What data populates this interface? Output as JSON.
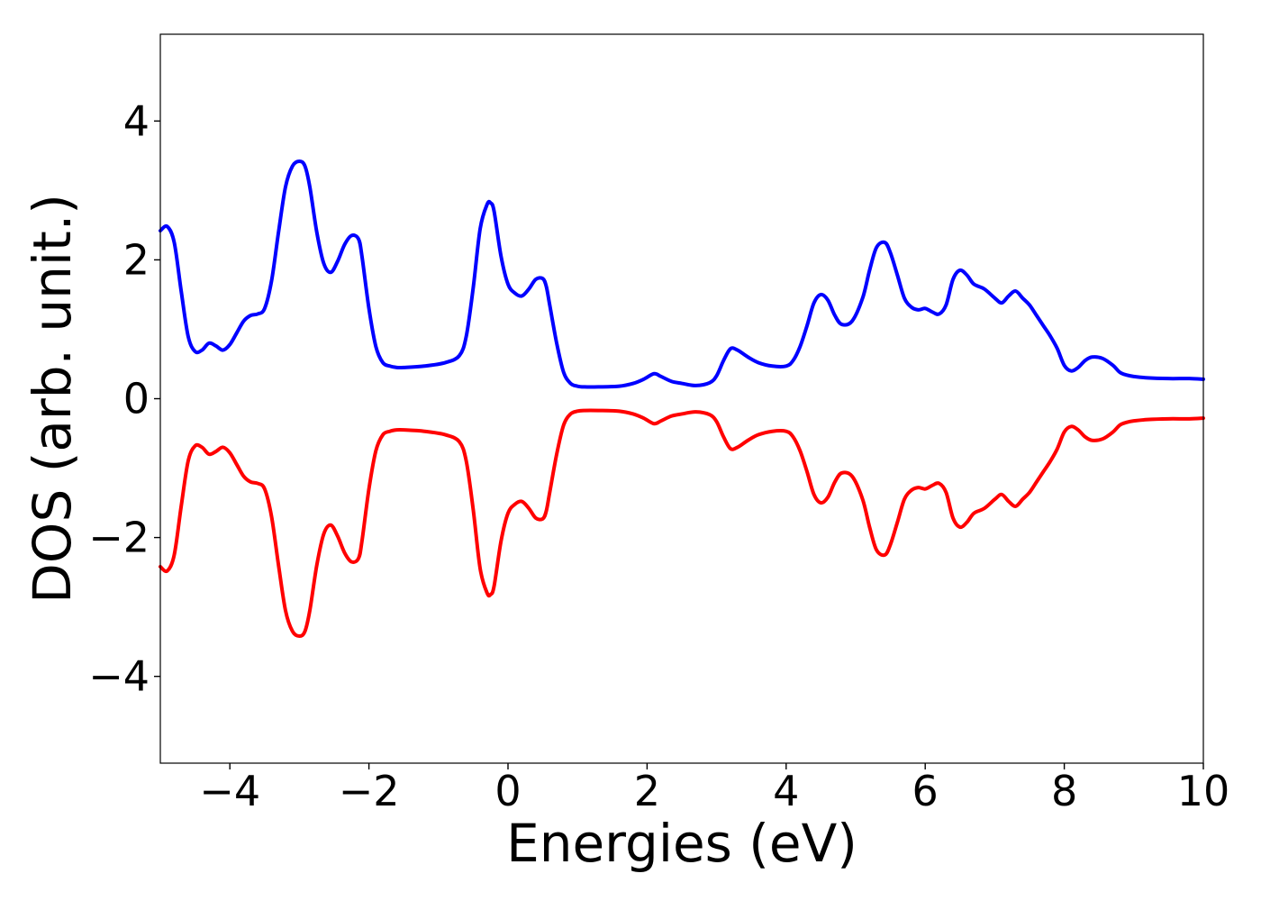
{
  "chart_data": {
    "type": "line",
    "title": "",
    "xlabel": "Energies (eV)",
    "ylabel": "DOS (arb. unit.)",
    "xlim": [
      -5,
      10
    ],
    "ylim": [
      -5.25,
      5.25
    ],
    "grid": false,
    "legend": "none",
    "xticks": [
      -4,
      -2,
      0,
      2,
      4,
      6,
      8,
      10
    ],
    "xtick_labels": [
      "−4",
      "−2",
      "0",
      "2",
      "4",
      "6",
      "8",
      "10"
    ],
    "yticks": [
      -4,
      -2,
      0,
      2,
      4
    ],
    "ytick_labels": [
      "−4",
      "−2",
      "0",
      "2",
      "4"
    ],
    "series": [
      {
        "color": "#0000ff",
        "x": [
          -5.0,
          -4.9,
          -4.8,
          -4.7,
          -4.6,
          -4.5,
          -4.4,
          -4.3,
          -4.2,
          -4.1,
          -4.0,
          -3.9,
          -3.8,
          -3.7,
          -3.6,
          -3.5,
          -3.4,
          -3.3,
          -3.2,
          -3.1,
          -3.0,
          -2.92,
          -2.85,
          -2.75,
          -2.65,
          -2.55,
          -2.45,
          -2.35,
          -2.25,
          -2.15,
          -2.1,
          -2.0,
          -1.9,
          -1.8,
          -1.7,
          -1.6,
          -1.5,
          -1.2,
          -0.9,
          -0.7,
          -0.6,
          -0.5,
          -0.4,
          -0.3,
          -0.25,
          -0.2,
          -0.1,
          0.0,
          0.1,
          0.2,
          0.3,
          0.4,
          0.5,
          0.55,
          0.6,
          0.7,
          0.8,
          0.9,
          1.0,
          1.1,
          1.3,
          1.6,
          1.8,
          1.95,
          2.1,
          2.2,
          2.35,
          2.5,
          2.7,
          2.9,
          3.0,
          3.1,
          3.2,
          3.3,
          3.45,
          3.6,
          3.8,
          4.0,
          4.1,
          4.2,
          4.3,
          4.4,
          4.5,
          4.6,
          4.7,
          4.8,
          4.95,
          5.1,
          5.2,
          5.3,
          5.42,
          5.5,
          5.6,
          5.7,
          5.8,
          5.9,
          6.0,
          6.1,
          6.2,
          6.3,
          6.4,
          6.5,
          6.6,
          6.7,
          6.85,
          7.0,
          7.1,
          7.2,
          7.3,
          7.4,
          7.5,
          7.6,
          7.7,
          7.8,
          7.9,
          8.0,
          8.1,
          8.2,
          8.3,
          8.4,
          8.55,
          8.7,
          8.8,
          8.9,
          9.0,
          9.2,
          9.5,
          9.8,
          10.0
        ],
        "y": [
          2.42,
          2.48,
          2.25,
          1.55,
          0.9,
          0.68,
          0.7,
          0.8,
          0.76,
          0.7,
          0.78,
          0.95,
          1.12,
          1.2,
          1.22,
          1.3,
          1.7,
          2.4,
          3.05,
          3.35,
          3.42,
          3.35,
          3.05,
          2.4,
          1.95,
          1.82,
          1.98,
          2.22,
          2.35,
          2.3,
          2.05,
          1.3,
          0.75,
          0.52,
          0.47,
          0.45,
          0.45,
          0.47,
          0.52,
          0.62,
          0.9,
          1.6,
          2.45,
          2.8,
          2.82,
          2.7,
          2.05,
          1.65,
          1.52,
          1.48,
          1.58,
          1.72,
          1.73,
          1.62,
          1.35,
          0.8,
          0.38,
          0.22,
          0.18,
          0.17,
          0.17,
          0.18,
          0.22,
          0.28,
          0.36,
          0.32,
          0.25,
          0.22,
          0.19,
          0.23,
          0.33,
          0.55,
          0.72,
          0.7,
          0.6,
          0.52,
          0.47,
          0.47,
          0.55,
          0.75,
          1.05,
          1.38,
          1.5,
          1.42,
          1.2,
          1.07,
          1.12,
          1.45,
          1.85,
          2.18,
          2.25,
          2.1,
          1.78,
          1.45,
          1.32,
          1.28,
          1.3,
          1.25,
          1.22,
          1.35,
          1.72,
          1.85,
          1.78,
          1.65,
          1.58,
          1.45,
          1.38,
          1.48,
          1.55,
          1.45,
          1.35,
          1.2,
          1.05,
          0.9,
          0.72,
          0.48,
          0.4,
          0.45,
          0.55,
          0.6,
          0.58,
          0.48,
          0.38,
          0.34,
          0.32,
          0.3,
          0.29,
          0.29,
          0.28
        ]
      },
      {
        "color": "#ff0000",
        "x": [
          -5.0,
          -4.9,
          -4.8,
          -4.7,
          -4.6,
          -4.5,
          -4.4,
          -4.3,
          -4.2,
          -4.1,
          -4.0,
          -3.9,
          -3.8,
          -3.7,
          -3.6,
          -3.5,
          -3.4,
          -3.3,
          -3.2,
          -3.1,
          -3.0,
          -2.92,
          -2.85,
          -2.75,
          -2.65,
          -2.55,
          -2.45,
          -2.35,
          -2.25,
          -2.15,
          -2.1,
          -2.0,
          -1.9,
          -1.8,
          -1.7,
          -1.6,
          -1.5,
          -1.2,
          -0.9,
          -0.7,
          -0.6,
          -0.5,
          -0.4,
          -0.3,
          -0.25,
          -0.2,
          -0.1,
          0.0,
          0.1,
          0.2,
          0.3,
          0.4,
          0.5,
          0.55,
          0.6,
          0.7,
          0.8,
          0.9,
          1.0,
          1.1,
          1.3,
          1.6,
          1.8,
          1.95,
          2.1,
          2.2,
          2.35,
          2.5,
          2.7,
          2.9,
          3.0,
          3.1,
          3.2,
          3.3,
          3.45,
          3.6,
          3.8,
          4.0,
          4.1,
          4.2,
          4.3,
          4.4,
          4.5,
          4.6,
          4.7,
          4.8,
          4.95,
          5.1,
          5.2,
          5.3,
          5.42,
          5.5,
          5.6,
          5.7,
          5.8,
          5.9,
          6.0,
          6.1,
          6.2,
          6.3,
          6.4,
          6.5,
          6.6,
          6.7,
          6.85,
          7.0,
          7.1,
          7.2,
          7.3,
          7.4,
          7.5,
          7.6,
          7.7,
          7.8,
          7.9,
          8.0,
          8.1,
          8.2,
          8.3,
          8.4,
          8.55,
          8.7,
          8.8,
          8.9,
          9.0,
          9.2,
          9.5,
          9.8,
          10.0
        ],
        "y": [
          -2.42,
          -2.48,
          -2.25,
          -1.55,
          -0.9,
          -0.68,
          -0.7,
          -0.8,
          -0.76,
          -0.7,
          -0.78,
          -0.95,
          -1.12,
          -1.2,
          -1.22,
          -1.3,
          -1.7,
          -2.4,
          -3.05,
          -3.35,
          -3.42,
          -3.35,
          -3.05,
          -2.4,
          -1.95,
          -1.82,
          -1.98,
          -2.22,
          -2.35,
          -2.3,
          -2.05,
          -1.3,
          -0.75,
          -0.52,
          -0.47,
          -0.45,
          -0.45,
          -0.47,
          -0.52,
          -0.62,
          -0.9,
          -1.6,
          -2.45,
          -2.8,
          -2.82,
          -2.7,
          -2.05,
          -1.65,
          -1.52,
          -1.48,
          -1.58,
          -1.72,
          -1.73,
          -1.62,
          -1.35,
          -0.8,
          -0.38,
          -0.22,
          -0.18,
          -0.17,
          -0.17,
          -0.18,
          -0.22,
          -0.28,
          -0.36,
          -0.32,
          -0.25,
          -0.22,
          -0.19,
          -0.23,
          -0.33,
          -0.55,
          -0.72,
          -0.7,
          -0.6,
          -0.52,
          -0.47,
          -0.47,
          -0.55,
          -0.75,
          -1.05,
          -1.38,
          -1.5,
          -1.42,
          -1.2,
          -1.07,
          -1.12,
          -1.45,
          -1.85,
          -2.18,
          -2.25,
          -2.1,
          -1.78,
          -1.45,
          -1.32,
          -1.28,
          -1.3,
          -1.25,
          -1.22,
          -1.35,
          -1.72,
          -1.85,
          -1.78,
          -1.65,
          -1.58,
          -1.45,
          -1.38,
          -1.48,
          -1.55,
          -1.45,
          -1.35,
          -1.2,
          -1.05,
          -0.9,
          -0.72,
          -0.48,
          -0.4,
          -0.45,
          -0.55,
          -0.6,
          -0.58,
          -0.48,
          -0.38,
          -0.34,
          -0.32,
          -0.3,
          -0.29,
          -0.29,
          -0.28
        ]
      }
    ]
  }
}
